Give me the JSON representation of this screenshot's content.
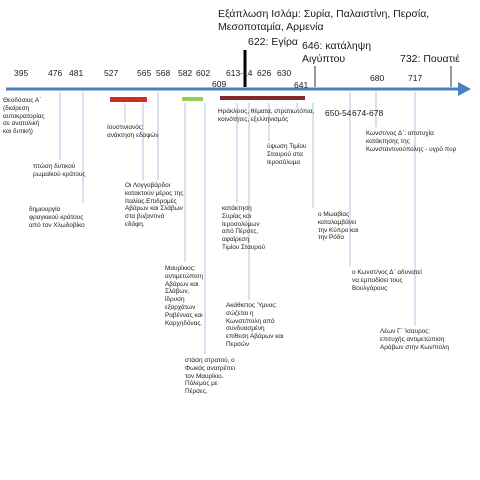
{
  "headings": {
    "expansion_line1": "Εξάπλωση Ισλάμ: Συρία, Παλαιστίνη, Περσία,",
    "expansion_line2": "Μεσοποταμία, Αρμενία",
    "hegira": "622: Εγίρα",
    "egypt_line1": "646: κατάληψη",
    "egypt_line2": "Αιγύπτου",
    "poitiers": "732: Πουατιέ"
  },
  "years": {
    "y395": "395",
    "y476": "476",
    "y481": "481",
    "y527": "527",
    "y565": "565",
    "y568": "568",
    "y582": "582",
    "y602": "602",
    "y609": "609",
    "y613": "613-14",
    "y626": "626",
    "y630": "630",
    "y641": "641",
    "y650": "650-54",
    "y674": "674-678",
    "y680": "680",
    "y717": "717"
  },
  "events": {
    "theodosius": [
      "Θεοδόσιος Α΄",
      "(διαίρεση",
      "αυτοκρατορίας",
      "σε ανατολική",
      "και δυτική)"
    ],
    "fall_west": [
      "πτώση δυτικού",
      "ρωμαϊκού κράτους"
    ],
    "frankish": [
      "δημιουργία",
      "φραγκικού κράτους",
      "από τον Χλωδοβίκο"
    ],
    "justinian": [
      "Ιουστινιανός:",
      "ανάκτηση εδαφών"
    ],
    "lombards": [
      "Οι Λογγοβάρδοι",
      "κατακτούν μέρος της",
      "Ιταλίας.Επιδρομές",
      "Αβάρων και Σλάβων",
      "στα βυζαντινά",
      "εδάφη."
    ],
    "maurice": [
      "Μαυρίκιος:",
      "αντιμετώπιση",
      "Αβάρων και",
      "Σλάβων,",
      "ίδρυση",
      "εξαρχάτων",
      "Ραβέννας και",
      "Καρχηδόνας."
    ],
    "phocas": [
      "στάση στρατού, ο",
      "Φωκάς ανατρέπει",
      "τον Μαυρίκιο.",
      "Πόλεμος με",
      "Πέρσες."
    ],
    "heraclius": [
      "Ηράκλειος, θέματα, στρατιωτόπια,",
      "κοινότητες, εξελληνισμός"
    ],
    "persian_conquest": [
      "κατάκτηση",
      "Συρίας και",
      "Ιεροσολύμων",
      "από Πέρσες,",
      "αφαίρεση",
      "Τιμίου Σταυρού"
    ],
    "akathist": [
      "Ακάθιστος Ύμνος:",
      "σώζεται η",
      "Κωνστ/πολη από",
      "συνδυασμένη",
      "επίθεση Αβάρων και",
      "Περσών"
    ],
    "true_cross": [
      "ύψωση Τιμίου",
      "Σταυρού στα",
      "Ιεροσόλυμα"
    ],
    "muawiya": [
      "ο Μωαβίας",
      "καταλαμβάνει",
      "την Κύπρο και",
      "την Ρόδο"
    ],
    "constantine_iv": [
      "Κωνστ/νος Δ΄: αποτυχία",
      "κατάκτησης της",
      "Κωνσταντινούπολης - υγρό πυρ"
    ],
    "bulgars": [
      "ο Κωνστ/νος Δ΄ αδυνατεί",
      "να εμποδίσει τους",
      "Βουλγάρους"
    ],
    "leo_iii": [
      "Λέων Γ΄ Ίσαυρος:",
      "επιτυχής αντιμετώπιση",
      "Αράβων στην Κων/πολη"
    ]
  },
  "colors": {
    "axis": "#4a7fc1",
    "leader": "#a9c4e4",
    "red_bar": "#d42a25",
    "green_bar": "#92cd54",
    "dark_red_bar": "#7d2b2b",
    "text": "#1a1a1a"
  }
}
